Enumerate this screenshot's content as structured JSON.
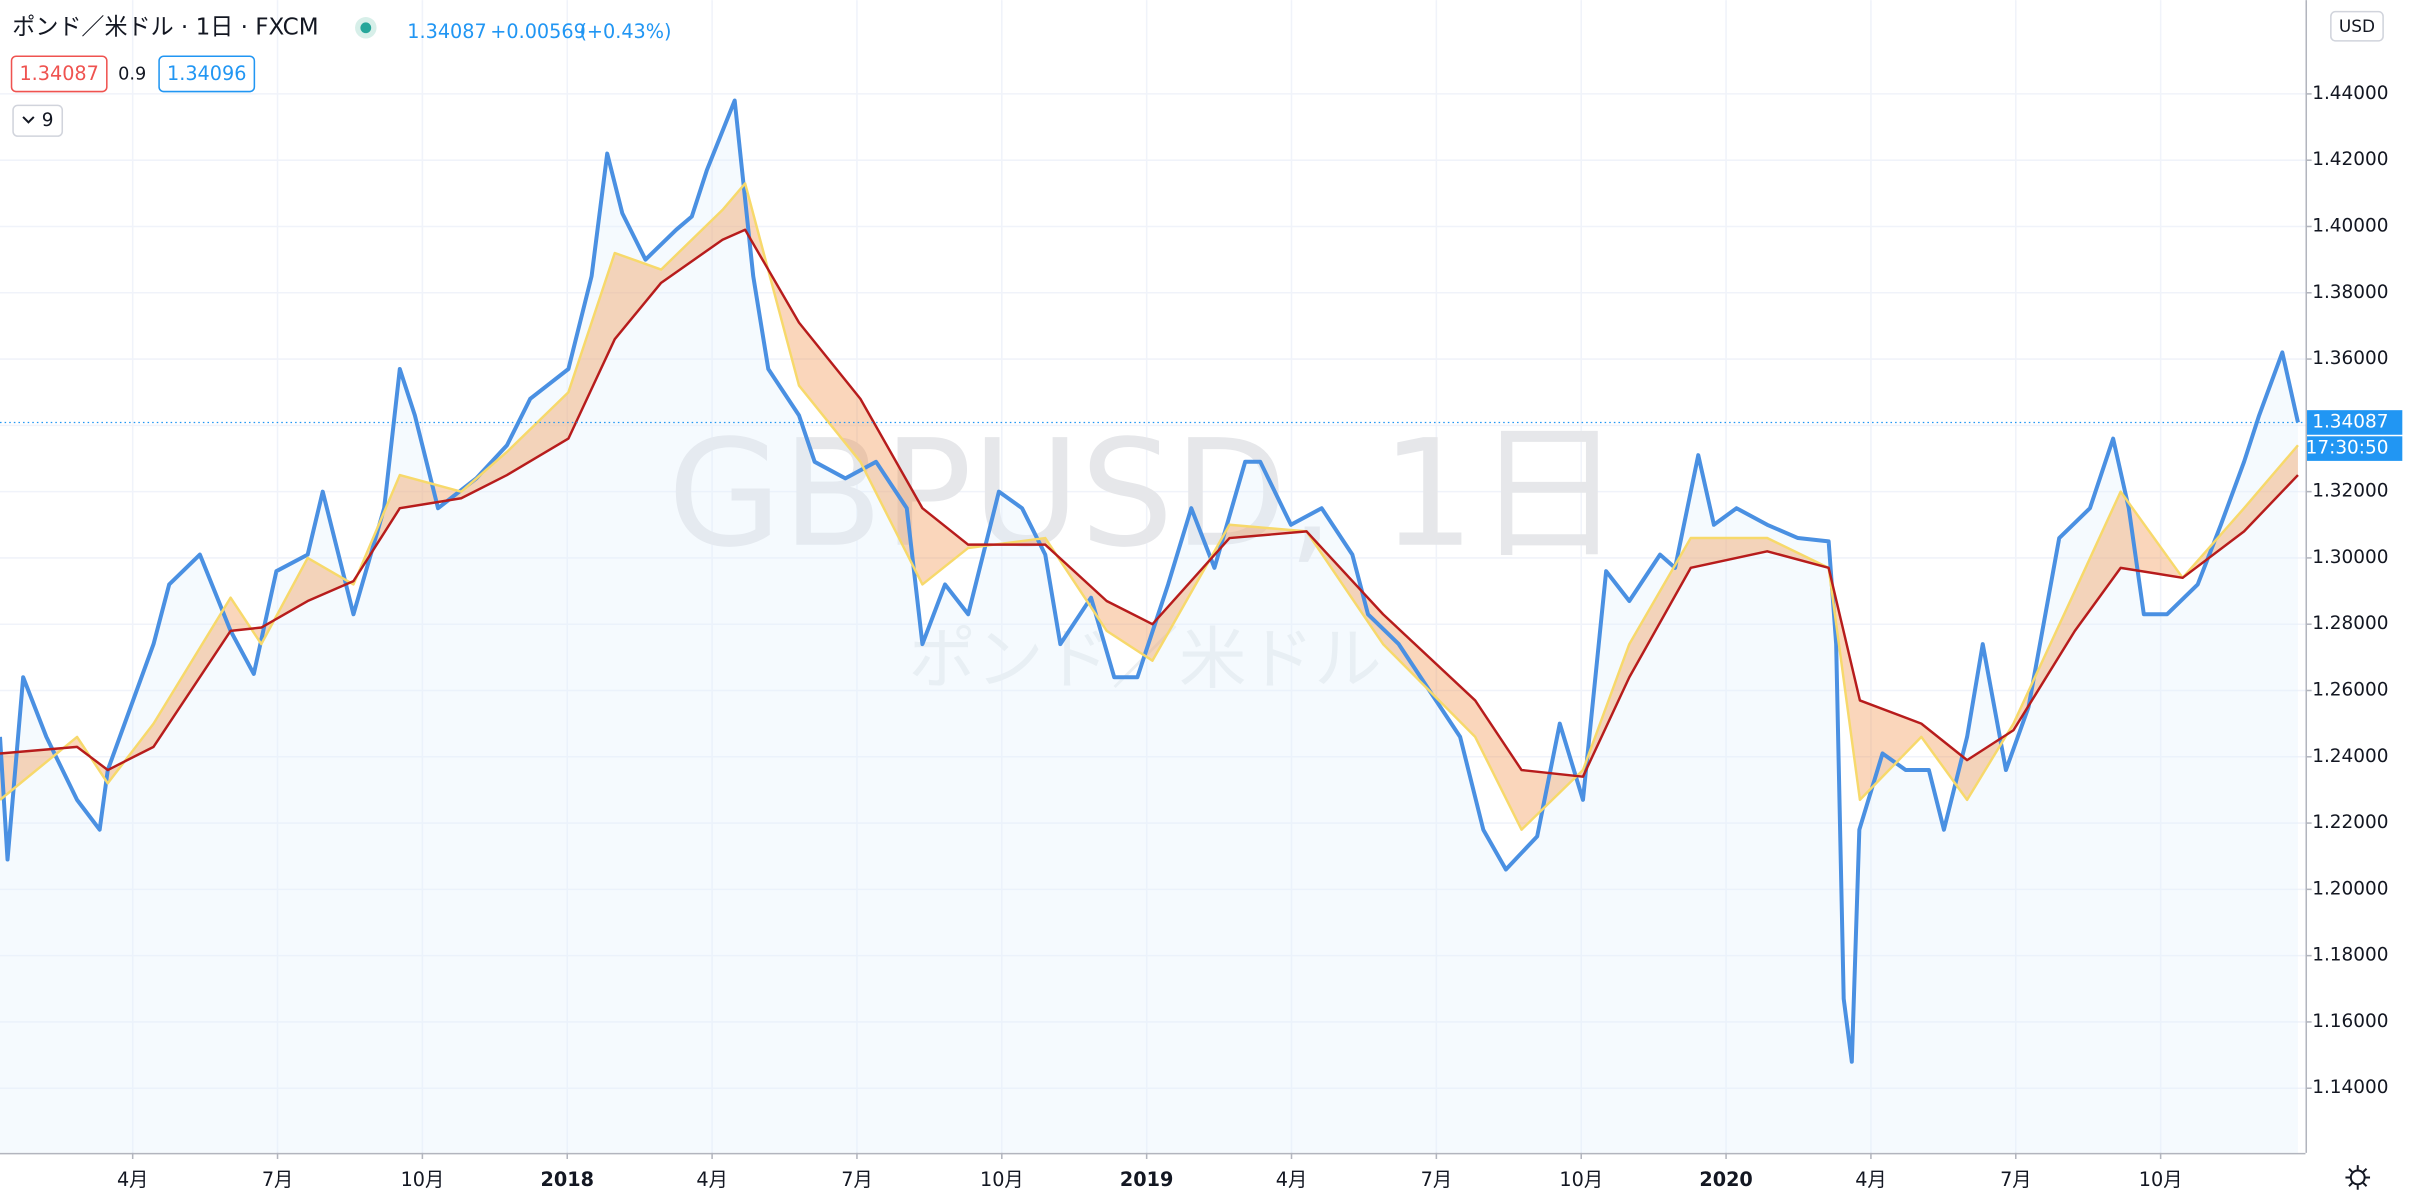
{
  "header": {
    "title": "ポンド／米ドル · 1日 · FXCM",
    "last": "1.34087",
    "change": "+0.00569",
    "change_pct": "(+0.43%)",
    "bid": "1.34087",
    "spread": "0.9",
    "ask": "1.34096",
    "indicators": "9"
  },
  "chart_data": {
    "type": "line",
    "watermark": "GBPUSD, 1日",
    "watermark_sub": "ポンド／米ドル",
    "currency": "USD",
    "price_line": {
      "value": 1.34087,
      "label": "1.34087",
      "countdown": "17:30:50"
    },
    "xlim": [
      2017.021,
      2021.0
    ],
    "ylim": [
      1.1205,
      1.4683
    ],
    "grid": true,
    "xticks": [
      {
        "value": 2017.25,
        "label": "4月"
      },
      {
        "value": 2017.5,
        "label": "7月"
      },
      {
        "value": 2017.75,
        "label": "10月"
      },
      2018,
      {
        "value": 2018.25,
        "label": "4月"
      },
      {
        "value": 2018.5,
        "label": "7月"
      },
      {
        "value": 2018.75,
        "label": "10月"
      },
      2019,
      {
        "value": 2019.25,
        "label": "4月"
      },
      {
        "value": 2019.5,
        "label": "7月"
      },
      {
        "value": 2019.75,
        "label": "10月"
      },
      2020,
      {
        "value": 2020.25,
        "label": "4月"
      },
      {
        "value": 2020.5,
        "label": "7月"
      },
      {
        "value": 2020.75,
        "label": "10月"
      }
    ],
    "yticks": [
      {
        "value": 1.14,
        "label": "1.14000"
      },
      {
        "value": 1.16,
        "label": "1.16000"
      },
      {
        "value": 1.18,
        "label": "1.18000"
      },
      {
        "value": 1.2,
        "label": "1.20000"
      },
      {
        "value": 1.22,
        "label": "1.22000"
      },
      {
        "value": 1.24,
        "label": "1.24000"
      },
      {
        "value": 1.26,
        "label": "1.26000"
      },
      {
        "value": 1.28,
        "label": "1.28000"
      },
      {
        "value": 1.3,
        "label": "1.30000"
      },
      {
        "value": 1.32,
        "label": "1.32000"
      },
      {
        "value": 1.34,
        "label": "1.34000"
      },
      {
        "value": 1.36,
        "label": "1.36000"
      },
      {
        "value": 1.38,
        "label": "1.38000"
      },
      {
        "value": 1.4,
        "label": "1.40000"
      },
      {
        "value": 1.42,
        "label": "1.42000"
      },
      {
        "value": 1.44,
        "label": "1.44000"
      }
    ],
    "series": [
      {
        "color": "#4a90e2",
        "x": [
          2017.021,
          2017.034,
          2017.061,
          2017.101,
          2017.154,
          2017.193,
          2017.207,
          2017.286,
          2017.313,
          2017.366,
          2017.419,
          2017.459,
          2017.498,
          2017.552,
          2017.578,
          2017.631,
          2017.684,
          2017.711,
          2017.737,
          2017.777,
          2017.843,
          2017.896,
          2017.936,
          2018.002,
          2018.042,
          2018.069,
          2018.095,
          2018.135,
          2018.188,
          2018.215,
          2018.241,
          2018.289,
          2018.321,
          2018.347,
          2018.4,
          2018.427,
          2018.48,
          2018.533,
          2018.586,
          2018.613,
          2018.652,
          2018.692,
          2018.745,
          2018.785,
          2018.825,
          2018.851,
          2018.904,
          2018.944,
          2018.984,
          2019.037,
          2019.077,
          2019.117,
          2019.17,
          2019.196,
          2019.249,
          2019.302,
          2019.355,
          2019.382,
          2019.435,
          2019.488,
          2019.541,
          2019.581,
          2019.62,
          2019.674,
          2019.713,
          2019.753,
          2019.793,
          2019.833,
          2019.886,
          2019.912,
          2019.952,
          2019.979,
          2020.018,
          2020.071,
          2020.124,
          2020.177,
          2020.19,
          2020.203,
          2020.217,
          2020.23,
          2020.27,
          2020.31,
          2020.35,
          2020.376,
          2020.416,
          2020.443,
          2020.483,
          2020.522,
          2020.575,
          2020.628,
          2020.668,
          2020.695,
          2020.721,
          2020.761,
          2020.814,
          2020.854,
          2020.894,
          2020.92,
          2020.96,
          2020.987
        ],
        "values": [
          1.246,
          1.209,
          1.264,
          1.246,
          1.227,
          1.218,
          1.236,
          1.274,
          1.292,
          1.301,
          1.278,
          1.265,
          1.296,
          1.301,
          1.32,
          1.283,
          1.315,
          1.357,
          1.343,
          1.315,
          1.324,
          1.334,
          1.348,
          1.357,
          1.385,
          1.422,
          1.404,
          1.39,
          1.399,
          1.403,
          1.417,
          1.438,
          1.385,
          1.357,
          1.343,
          1.329,
          1.324,
          1.329,
          1.315,
          1.274,
          1.292,
          1.283,
          1.32,
          1.315,
          1.301,
          1.274,
          1.288,
          1.264,
          1.264,
          1.292,
          1.315,
          1.297,
          1.329,
          1.329,
          1.31,
          1.315,
          1.301,
          1.283,
          1.274,
          1.26,
          1.246,
          1.218,
          1.206,
          1.216,
          1.25,
          1.227,
          1.296,
          1.287,
          1.301,
          1.297,
          1.331,
          1.31,
          1.315,
          1.31,
          1.306,
          1.305,
          1.274,
          1.167,
          1.148,
          1.218,
          1.241,
          1.236,
          1.236,
          1.218,
          1.246,
          1.274,
          1.236,
          1.255,
          1.306,
          1.315,
          1.336,
          1.315,
          1.283,
          1.283,
          1.292,
          1.31,
          1.329,
          1.343,
          1.362,
          1.34087
        ]
      },
      {
        "color": "#f7d96b",
        "x": [
          2017.021,
          2017.154,
          2017.207,
          2017.286,
          2017.419,
          2017.472,
          2017.552,
          2017.631,
          2017.711,
          2017.817,
          2017.896,
          2018.002,
          2018.082,
          2018.162,
          2018.268,
          2018.307,
          2018.4,
          2018.506,
          2018.613,
          2018.692,
          2018.825,
          2018.931,
          2019.01,
          2019.143,
          2019.276,
          2019.408,
          2019.567,
          2019.647,
          2019.753,
          2019.833,
          2019.939,
          2020.071,
          2020.177,
          2020.231,
          2020.337,
          2020.416,
          2020.496,
          2020.602,
          2020.681,
          2020.788,
          2020.894,
          2020.987
        ],
        "values": [
          1.227,
          1.246,
          1.232,
          1.25,
          1.288,
          1.274,
          1.3,
          1.292,
          1.325,
          1.32,
          1.332,
          1.35,
          1.392,
          1.387,
          1.405,
          1.413,
          1.352,
          1.329,
          1.292,
          1.303,
          1.306,
          1.278,
          1.269,
          1.31,
          1.308,
          1.274,
          1.246,
          1.218,
          1.236,
          1.274,
          1.306,
          1.306,
          1.297,
          1.227,
          1.246,
          1.227,
          1.25,
          1.29,
          1.32,
          1.294,
          1.315,
          1.334
        ]
      },
      {
        "color": "#b71c1c",
        "x": [
          2017.021,
          2017.154,
          2017.207,
          2017.286,
          2017.419,
          2017.472,
          2017.552,
          2017.631,
          2017.711,
          2017.817,
          2017.896,
          2018.002,
          2018.082,
          2018.162,
          2018.268,
          2018.307,
          2018.4,
          2018.506,
          2018.613,
          2018.692,
          2018.825,
          2018.931,
          2019.01,
          2019.143,
          2019.276,
          2019.408,
          2019.567,
          2019.647,
          2019.753,
          2019.833,
          2019.939,
          2020.071,
          2020.177,
          2020.231,
          2020.337,
          2020.416,
          2020.496,
          2020.602,
          2020.681,
          2020.788,
          2020.894,
          2020.987
        ],
        "values": [
          1.241,
          1.243,
          1.236,
          1.243,
          1.278,
          1.279,
          1.287,
          1.293,
          1.315,
          1.318,
          1.325,
          1.336,
          1.366,
          1.383,
          1.396,
          1.399,
          1.371,
          1.348,
          1.315,
          1.304,
          1.304,
          1.287,
          1.28,
          1.306,
          1.308,
          1.283,
          1.257,
          1.236,
          1.234,
          1.264,
          1.297,
          1.302,
          1.297,
          1.257,
          1.25,
          1.239,
          1.248,
          1.278,
          1.297,
          1.294,
          1.308,
          1.325
        ]
      }
    ]
  }
}
